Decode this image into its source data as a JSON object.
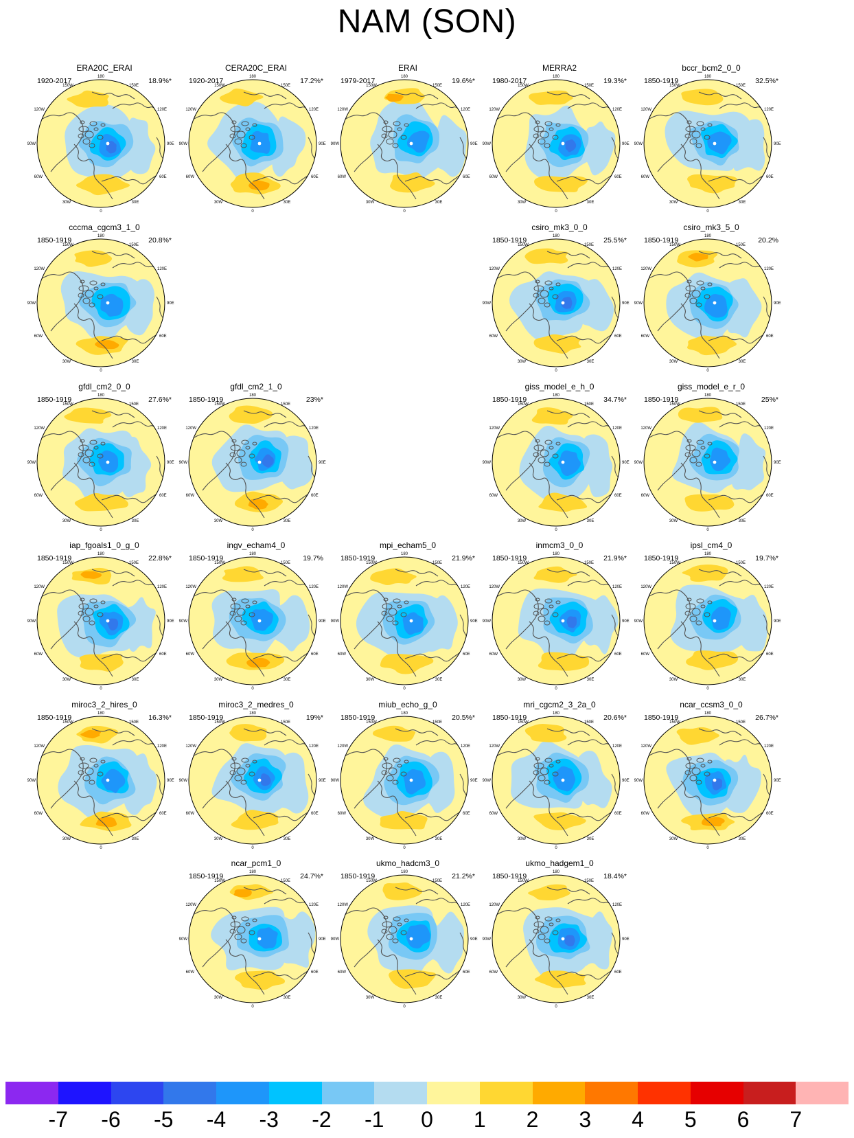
{
  "title": "NAM (SON)",
  "lon_labels": [
    "180",
    "150W",
    "150E",
    "120W",
    "120E",
    "90W",
    "90E",
    "60W",
    "60E",
    "30W",
    "30E",
    "0"
  ],
  "panels": [
    {
      "name": "ERA20C_ERAI",
      "period": "1920-2017",
      "pct": "18.9%*",
      "row": 0,
      "col": 0
    },
    {
      "name": "CERA20C_ERAI",
      "period": "1920-2017",
      "pct": "17.2%*",
      "row": 0,
      "col": 1
    },
    {
      "name": "ERAI",
      "period": "1979-2017",
      "pct": "19.6%*",
      "row": 0,
      "col": 2
    },
    {
      "name": "MERRA2",
      "period": "1980-2017",
      "pct": "19.3%*",
      "row": 0,
      "col": 3
    },
    {
      "name": "bccr_bcm2_0_0",
      "period": "1850-1919",
      "pct": "32.5%*",
      "row": 0,
      "col": 4
    },
    {
      "name": "cccma_cgcm3_1_0",
      "period": "1850-1919",
      "pct": "20.8%*",
      "row": 1,
      "col": 0
    },
    {
      "name": "csiro_mk3_0_0",
      "period": "1850-1919",
      "pct": "25.5%*",
      "row": 1,
      "col": 3
    },
    {
      "name": "csiro_mk3_5_0",
      "period": "1850-1919",
      "pct": "20.2%",
      "row": 1,
      "col": 4
    },
    {
      "name": "gfdl_cm2_0_0",
      "period": "1850-1919",
      "pct": "27.6%*",
      "row": 2,
      "col": 0
    },
    {
      "name": "gfdl_cm2_1_0",
      "period": "1850-1919",
      "pct": "23%*",
      "row": 2,
      "col": 1
    },
    {
      "name": "giss_model_e_h_0",
      "period": "1850-1919",
      "pct": "34.7%*",
      "row": 2,
      "col": 3
    },
    {
      "name": "giss_model_e_r_0",
      "period": "1850-1919",
      "pct": "25%*",
      "row": 2,
      "col": 4
    },
    {
      "name": "iap_fgoals1_0_g_0",
      "period": "1850-1919",
      "pct": "22.8%*",
      "row": 3,
      "col": 0
    },
    {
      "name": "ingv_echam4_0",
      "period": "1850-1919",
      "pct": "19.7%",
      "row": 3,
      "col": 1
    },
    {
      "name": "mpi_echam5_0",
      "period": "1850-1919",
      "pct": "21.9%*",
      "row": 3,
      "col": 2
    },
    {
      "name": "inmcm3_0_0",
      "period": "1850-1919",
      "pct": "21.9%*",
      "row": 3,
      "col": 3
    },
    {
      "name": "ipsl_cm4_0",
      "period": "1850-1919",
      "pct": "19.7%*",
      "row": 3,
      "col": 4
    },
    {
      "name": "miroc3_2_hires_0",
      "period": "1850-1919",
      "pct": "16.3%*",
      "row": 4,
      "col": 0
    },
    {
      "name": "miroc3_2_medres_0",
      "period": "1850-1919",
      "pct": "19%*",
      "row": 4,
      "col": 1
    },
    {
      "name": "miub_echo_g_0",
      "period": "1850-1919",
      "pct": "20.5%*",
      "row": 4,
      "col": 2
    },
    {
      "name": "mri_cgcm2_3_2a_0",
      "period": "1850-1919",
      "pct": "20.6%*",
      "row": 4,
      "col": 3
    },
    {
      "name": "ncar_ccsm3_0_0",
      "period": "1850-1919",
      "pct": "26.7%*",
      "row": 4,
      "col": 4
    },
    {
      "name": "ncar_pcm1_0",
      "period": "1850-1919",
      "pct": "24.7%*",
      "row": 5,
      "col": 1
    },
    {
      "name": "ukmo_hadcm3_0",
      "period": "1850-1919",
      "pct": "21.2%*",
      "row": 5,
      "col": 2
    },
    {
      "name": "ukmo_hadgem1_0",
      "period": "1850-1919",
      "pct": "18.4%*",
      "row": 5,
      "col": 3
    }
  ],
  "colorbar": {
    "colors": [
      "#8c28f0",
      "#1e14ff",
      "#2d46f0",
      "#3278eb",
      "#1e96fa",
      "#00c3ff",
      "#78c8f5",
      "#b4dcf0",
      "#fff59b",
      "#ffd732",
      "#ffaa00",
      "#ff7800",
      "#ff3200",
      "#e60000",
      "#c81e1e",
      "#ffb4b4"
    ],
    "labels": [
      "-7",
      "-6",
      "-5",
      "-4",
      "-3",
      "-2",
      "-1",
      "0",
      "1",
      "2",
      "3",
      "4",
      "5",
      "6",
      "7"
    ]
  }
}
